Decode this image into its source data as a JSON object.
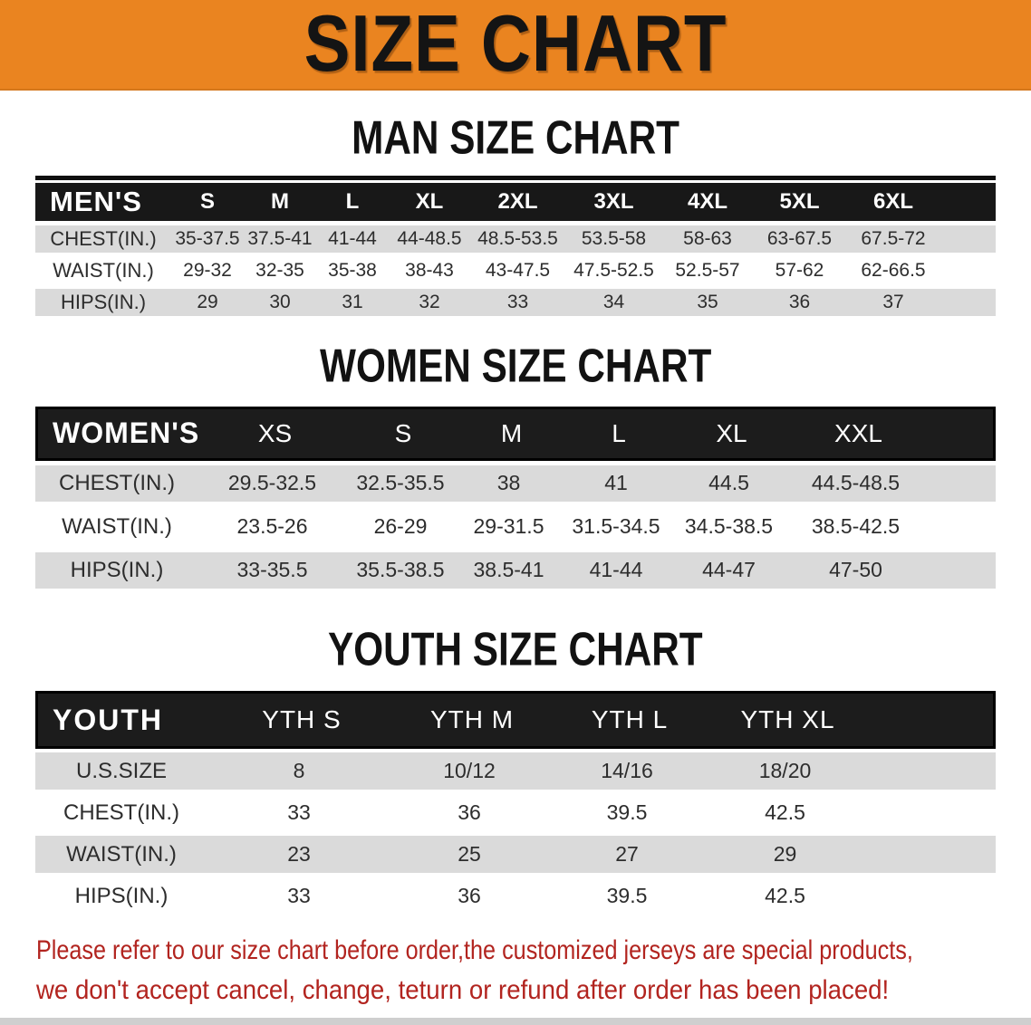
{
  "banner": {
    "title": "SIZE CHART"
  },
  "men": {
    "heading": "MAN SIZE CHART",
    "label": "MEN'S",
    "sizes": [
      "S",
      "M",
      "L",
      "XL",
      "2XL",
      "3XL",
      "4XL",
      "5XL",
      "6XL"
    ],
    "rows": [
      {
        "label": "CHEST(IN.)",
        "values": [
          "35-37.5",
          "37.5-41",
          "41-44",
          "44-48.5",
          "48.5-53.5",
          "53.5-58",
          "58-63",
          "63-67.5",
          "67.5-72"
        ]
      },
      {
        "label": "WAIST(IN.)",
        "values": [
          "29-32",
          "32-35",
          "35-38",
          "38-43",
          "43-47.5",
          "47.5-52.5",
          "52.5-57",
          "57-62",
          "62-66.5"
        ]
      },
      {
        "label": "HIPS(IN.)",
        "values": [
          "29",
          "30",
          "31",
          "32",
          "33",
          "34",
          "35",
          "36",
          "37"
        ]
      }
    ]
  },
  "women": {
    "heading": "WOMEN SIZE CHART",
    "label": "WOMEN'S",
    "sizes": [
      "XS",
      "S",
      "M",
      "L",
      "XL",
      "XXL"
    ],
    "rows": [
      {
        "label": "CHEST(IN.)",
        "values": [
          "29.5-32.5",
          "32.5-35.5",
          "38",
          "41",
          "44.5",
          "44.5-48.5"
        ]
      },
      {
        "label": "WAIST(IN.)",
        "values": [
          "23.5-26",
          "26-29",
          "29-31.5",
          "31.5-34.5",
          "34.5-38.5",
          "38.5-42.5"
        ]
      },
      {
        "label": "HIPS(IN.)",
        "values": [
          "33-35.5",
          "35.5-38.5",
          "38.5-41",
          "41-44",
          "44-47",
          "47-50"
        ]
      }
    ]
  },
  "youth": {
    "heading": "YOUTH SIZE CHART",
    "label": "YOUTH",
    "sizes": [
      "YTH S",
      "YTH M",
      "YTH L",
      "YTH XL"
    ],
    "rows": [
      {
        "label": "U.S.SIZE",
        "values": [
          "8",
          "10/12",
          "14/16",
          "18/20"
        ]
      },
      {
        "label": "CHEST(IN.)",
        "values": [
          "33",
          "36",
          "39.5",
          "42.5"
        ]
      },
      {
        "label": "WAIST(IN.)",
        "values": [
          "23",
          "25",
          "27",
          "29"
        ]
      },
      {
        "label": "HIPS(IN.)",
        "values": [
          "33",
          "36",
          "39.5",
          "42.5"
        ]
      }
    ]
  },
  "footer": {
    "line1": "Please refer to our size chart before order,the customized jerseys are special products,",
    "line2": "we don't accept cancel, change, teturn or refund after order has been placed!"
  },
  "colors": {
    "banner_orange": "#EA8420",
    "header_bar_black": "#181818",
    "row_gray": "#DADADA",
    "footer_red": "#B2241F"
  }
}
